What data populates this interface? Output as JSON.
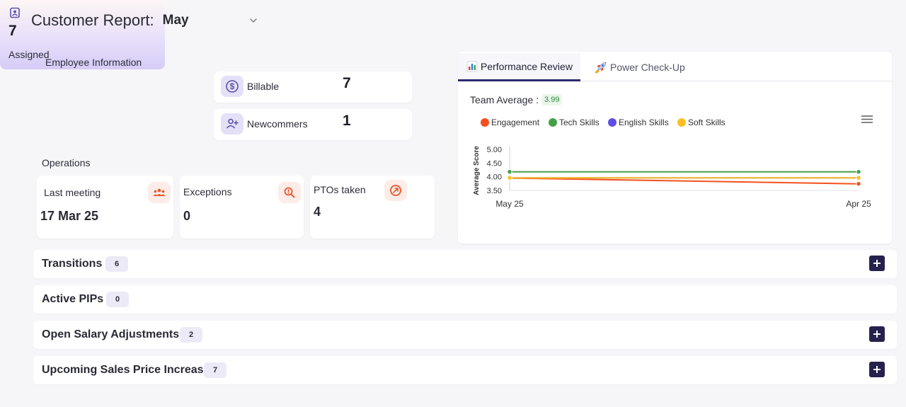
{
  "header": {
    "title": "Customer Report:",
    "month": "May"
  },
  "employee_info": {
    "label": "Employee Information",
    "assigned": {
      "value": "7",
      "label": "Assigned"
    },
    "billable": {
      "label": "Billable",
      "value": "7"
    },
    "newcomers": {
      "label": "Newcommers",
      "value": "1"
    }
  },
  "operations": {
    "label": "Operations",
    "last_meeting": {
      "label": "Last  meeting",
      "value": "17 Mar 25"
    },
    "exceptions": {
      "label": "Exceptions",
      "value": "0"
    },
    "ptos": {
      "label": "PTOs taken",
      "value": "4"
    }
  },
  "performance": {
    "tabs": [
      {
        "label": "Performance Review",
        "active": true
      },
      {
        "label": "Power Check-Up",
        "active": false
      }
    ],
    "team_average_label": "Team Average :",
    "team_average_value": "3.99",
    "menu_icon": "hamburger-menu-icon"
  },
  "chart_data": {
    "type": "line",
    "categories": [
      "May 25",
      "Apr 25"
    ],
    "series": [
      {
        "name": "Engagement",
        "color": "#f4511e",
        "values": [
          3.95,
          3.74
        ]
      },
      {
        "name": "Tech Skills",
        "color": "#43a047",
        "values": [
          4.18,
          4.18
        ]
      },
      {
        "name": "English Skills",
        "color": "#5e4de6",
        "values": [
          3.96,
          3.96
        ]
      },
      {
        "name": "Soft Skills",
        "color": "#fbbf24",
        "values": [
          3.96,
          3.96
        ]
      }
    ],
    "ylabel": "Average Score",
    "yticks": [
      "5.00",
      "4.50",
      "4.00",
      "3.50"
    ],
    "ylim": [
      3.5,
      5.0
    ],
    "legend": "top-left",
    "grid": false
  },
  "rows": [
    {
      "title": "Transitions",
      "count": "6",
      "expandable": true
    },
    {
      "title": "Active PIPs",
      "count": "0",
      "expandable": false
    },
    {
      "title": "Open Salary Adjustments",
      "count": "2",
      "expandable": true
    },
    {
      "title": "Upcoming Sales Price Increase",
      "count": "7",
      "expandable": true
    }
  ],
  "colors": {
    "accent": "#25224d",
    "assigned_gradient_end": "#d6ccf7",
    "icon_bg_orange": "#fdece7",
    "icon_orange": "#e8562e",
    "icon_purple": "#5b50a8"
  }
}
